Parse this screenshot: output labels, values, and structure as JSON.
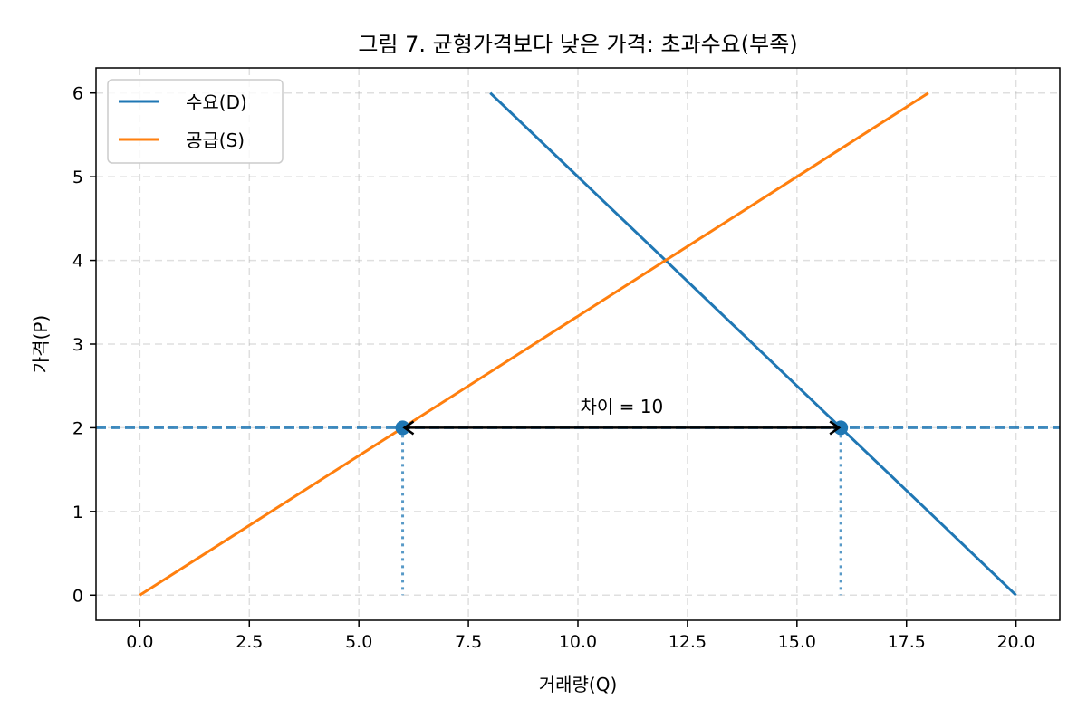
{
  "chart_data": {
    "type": "line",
    "title": "그림 7. 균형가격보다 낮은 가격: 초과수요(부족)",
    "xlabel": "거래량(Q)",
    "ylabel": "가격(P)",
    "xlim": [
      -1,
      21
    ],
    "ylim": [
      -0.3,
      6.3
    ],
    "xticks": [
      0.0,
      2.5,
      5.0,
      7.5,
      10.0,
      12.5,
      15.0,
      17.5,
      20.0
    ],
    "xtick_labels": [
      "0.0",
      "2.5",
      "5.0",
      "7.5",
      "10.0",
      "12.5",
      "15.0",
      "17.5",
      "20.0"
    ],
    "yticks": [
      0,
      1,
      2,
      3,
      4,
      5,
      6
    ],
    "ytick_labels": [
      "0",
      "1",
      "2",
      "3",
      "4",
      "5",
      "6"
    ],
    "grid": true,
    "legend_position": "top-left",
    "series": [
      {
        "name": "수요(D)",
        "color": "#1f77b4",
        "x": [
          8,
          20
        ],
        "y": [
          6,
          0
        ]
      },
      {
        "name": "공급(S)",
        "color": "#ff7f0e",
        "x": [
          0,
          18
        ],
        "y": [
          0,
          6
        ]
      }
    ],
    "price_line": {
      "y": 2,
      "color": "#1f77b4",
      "style": "dashed"
    },
    "points": [
      {
        "x": 6,
        "y": 2,
        "color": "#1f77b4"
      },
      {
        "x": 16,
        "y": 2,
        "color": "#1f77b4"
      }
    ],
    "annotation": {
      "text": "차이 = 10",
      "x": 11,
      "y": 2.2,
      "arrow_from": [
        16,
        2
      ],
      "arrow_to": [
        6,
        2
      ]
    }
  }
}
